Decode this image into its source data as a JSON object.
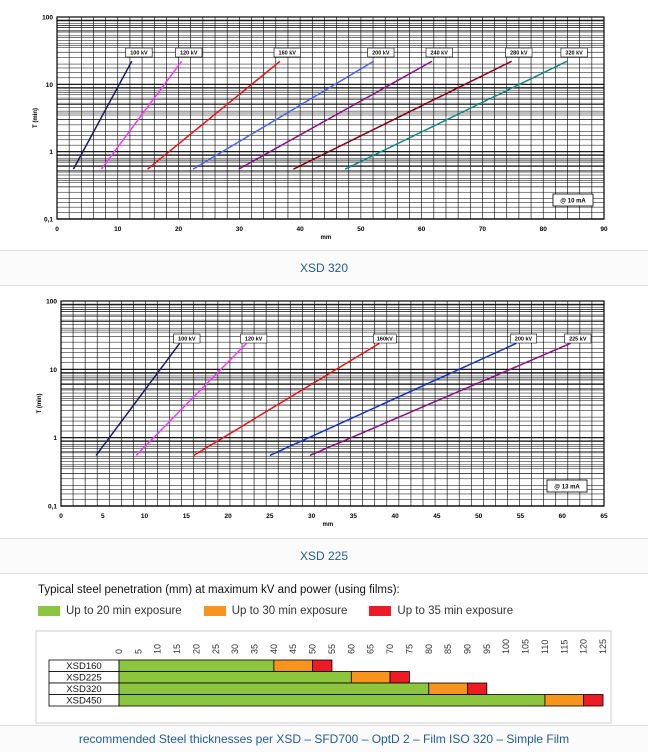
{
  "charts": {
    "xsd320": {
      "caption": "XSD 320",
      "note": "@ 10 mA",
      "xlabel": "mm",
      "ylabel": "T (min)"
    },
    "xsd225": {
      "caption": "XSD 225",
      "note": "@ 13 mA",
      "xlabel": "mm",
      "ylabel": "T (min)"
    },
    "penetration": {
      "title": "Typical steel penetration (mm) at maximum kV and power (using films):",
      "legend": [
        {
          "label": "Up to 20 min exposure",
          "color": "#8cc63e"
        },
        {
          "label": "Up to 30 min exposure",
          "color": "#f7941d"
        },
        {
          "label": "Up to 35 min exposure",
          "color": "#ed1c24"
        }
      ]
    },
    "footer": "recommended Steel thicknesses per XSD – SFD700 – OptD 2 – Film ISO 320 – Simple Film"
  },
  "chart_data": [
    {
      "type": "line",
      "title": "XSD 320",
      "xlabel": "mm",
      "ylabel": "T (min)",
      "xlim": [
        0,
        90
      ],
      "ylim": [
        0.1,
        100
      ],
      "yscale": "log",
      "xticks": [
        "0",
        "10",
        "20",
        "30",
        "40",
        "50",
        "60",
        "70",
        "80",
        "90"
      ],
      "yticks": [
        "0,1",
        "1",
        "10",
        "100"
      ],
      "annotation": "@ 10 mA",
      "series": [
        {
          "name": "100 kV",
          "color": "#1a1a6e",
          "points": [
            [
              2.7,
              0.55
            ],
            [
              12.3,
              22
            ]
          ]
        },
        {
          "name": "120 kV",
          "color": "#ff33ff",
          "points": [
            [
              7.3,
              0.55
            ],
            [
              20.5,
              22
            ]
          ]
        },
        {
          "name": "160 kV",
          "color": "#ee1111",
          "points": [
            [
              14.9,
              0.55
            ],
            [
              36.7,
              22
            ]
          ]
        },
        {
          "name": "200 kV",
          "color": "#4466ee",
          "points": [
            [
              22.4,
              0.55
            ],
            [
              52.1,
              22
            ]
          ]
        },
        {
          "name": "240 kV",
          "color": "#881188",
          "points": [
            [
              29.9,
              0.55
            ],
            [
              61.7,
              22
            ]
          ]
        },
        {
          "name": "280 kV",
          "color": "#880011",
          "points": [
            [
              38.9,
              0.55
            ],
            [
              74.8,
              22
            ]
          ]
        },
        {
          "name": "320 kV",
          "color": "#118888",
          "points": [
            [
              47.4,
              0.55
            ],
            [
              83.9,
              22
            ]
          ]
        }
      ]
    },
    {
      "type": "line",
      "title": "XSD 225",
      "xlabel": "mm",
      "ylabel": "T (min)",
      "xlim": [
        0,
        65
      ],
      "ylim": [
        0.1,
        100
      ],
      "yscale": "log",
      "xticks": [
        "0",
        "5",
        "10",
        "15",
        "20",
        "25",
        "30",
        "35",
        "40",
        "45",
        "50",
        "55",
        "60",
        "65"
      ],
      "yticks": [
        "0,1",
        "1",
        "10",
        "100"
      ],
      "annotation": "@ 13 mA",
      "series": [
        {
          "name": "100 kV",
          "color": "#1a1a6e",
          "points": [
            [
              4.2,
              0.55
            ],
            [
              14.2,
              24
            ]
          ]
        },
        {
          "name": "120 kV",
          "color": "#ff33ff",
          "points": [
            [
              9.0,
              0.55
            ],
            [
              22.2,
              24
            ]
          ]
        },
        {
          "name": "160kV",
          "color": "#ee1111",
          "points": [
            [
              15.9,
              0.55
            ],
            [
              38.1,
              24
            ]
          ]
        },
        {
          "name": "200 kV",
          "color": "#1133cc",
          "points": [
            [
              25.0,
              0.55
            ],
            [
              54.5,
              24
            ]
          ]
        },
        {
          "name": "225 kV",
          "color": "#881188",
          "points": [
            [
              29.8,
              0.55
            ],
            [
              61.0,
              24
            ]
          ]
        }
      ]
    },
    {
      "type": "bar",
      "orientation": "horizontal",
      "stacked": true,
      "xlim": [
        0,
        125
      ],
      "xticks": [
        "0",
        "5",
        "10",
        "15",
        "20",
        "25",
        "30",
        "35",
        "40",
        "45",
        "50",
        "55",
        "60",
        "65",
        "70",
        "75",
        "80",
        "85",
        "90",
        "95",
        "100",
        "105",
        "110",
        "115",
        "120",
        "125"
      ],
      "categories": [
        "XSD160",
        "XSD225",
        "XSD320",
        "XSD450"
      ],
      "series": [
        {
          "name": "Up to 20 min exposure",
          "values": [
            40,
            60,
            80,
            110
          ]
        },
        {
          "name": "Up to 30 min exposure",
          "values": [
            10,
            10,
            10,
            10
          ]
        },
        {
          "name": "Up to 35 min exposure",
          "values": [
            5,
            5,
            5,
            5
          ]
        }
      ]
    }
  ]
}
